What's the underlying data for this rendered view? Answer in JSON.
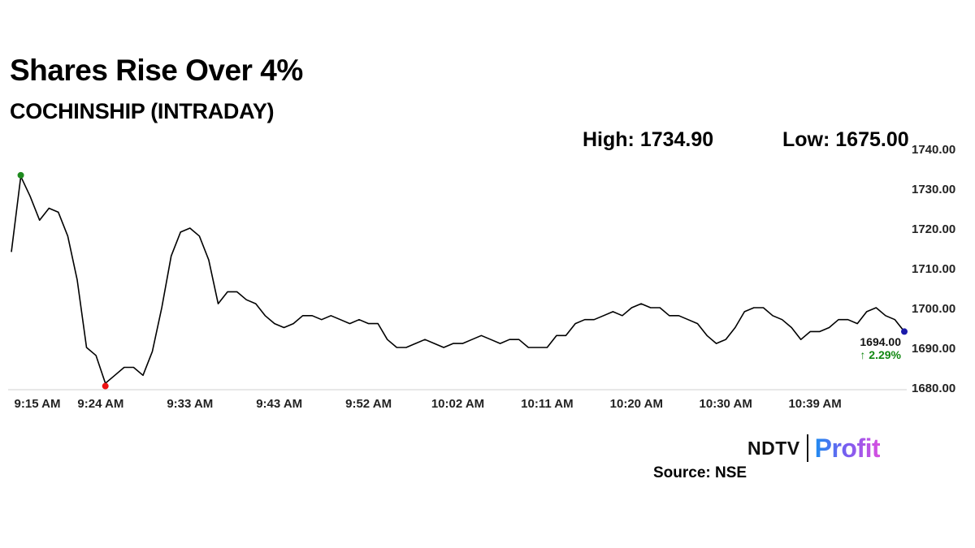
{
  "header": {
    "title": "Shares Rise Over 4%",
    "subtitle": "COCHINSHIP (INTRADAY)"
  },
  "stats": {
    "high": "High: 1734.90",
    "low": "Low: 1675.00"
  },
  "brand": {
    "ndtv": "NDTV",
    "profit": "Profit",
    "source": "Source: NSE"
  },
  "chart_data": {
    "type": "line",
    "title": "COCHINSHIP (INTRADAY)",
    "xlabel": "",
    "ylabel": "",
    "ylim": [
      1680,
      1740
    ],
    "y_ticks": [
      "1740.00",
      "1730.00",
      "1720.00",
      "1710.00",
      "1700.00",
      "1690.00",
      "1680.00"
    ],
    "x_ticks": [
      "9:15 AM",
      "9:24 AM",
      "9:33 AM",
      "9:43 AM",
      "9:52 AM",
      "10:02 AM",
      "10:11 AM",
      "10:20 AM",
      "10:30 AM",
      "10:39 AM"
    ],
    "grid": false,
    "x_minutes": [
      0,
      1,
      2,
      3,
      4,
      5,
      6,
      7,
      8,
      9,
      10,
      11,
      12,
      13,
      14,
      15,
      16,
      17,
      18,
      19,
      20,
      21,
      22,
      23,
      24,
      25,
      26,
      27,
      28,
      29,
      30,
      31,
      32,
      33,
      34,
      35,
      36,
      37,
      38,
      39,
      40,
      41,
      42,
      43,
      44,
      45,
      46,
      47,
      48,
      49,
      50,
      51,
      52,
      53,
      54,
      55,
      56,
      57,
      58,
      59,
      60,
      61,
      62,
      63,
      64,
      65,
      66,
      67,
      68,
      69,
      70,
      71,
      72,
      73,
      74,
      75,
      76,
      77,
      78,
      79,
      80,
      81,
      82,
      83,
      84,
      85,
      86,
      87,
      88,
      89,
      90,
      91,
      92,
      93,
      94,
      95
    ],
    "series": [
      {
        "values": [
          1714,
          1733,
          1728,
          1722,
          1725,
          1724,
          1718,
          1707,
          1690,
          1688,
          1681,
          1683,
          1685,
          1685,
          1683,
          1689,
          1700,
          1713,
          1719,
          1720,
          1718,
          1712,
          1701,
          1704,
          1704,
          1702,
          1701,
          1698,
          1696,
          1695,
          1696,
          1698,
          1698,
          1697,
          1698,
          1697,
          1696,
          1697,
          1696,
          1696,
          1692,
          1690,
          1690,
          1691,
          1692,
          1691,
          1690,
          1691,
          1691,
          1692,
          1693,
          1692,
          1691,
          1692,
          1692,
          1690,
          1690,
          1690,
          1693,
          1693,
          1696,
          1697,
          1697,
          1698,
          1699,
          1698,
          1700,
          1701,
          1700,
          1700,
          1698,
          1698,
          1697,
          1696,
          1693,
          1691,
          1692,
          1695,
          1699,
          1700,
          1700,
          1698,
          1697,
          1695,
          1692,
          1694,
          1694,
          1695,
          1697,
          1697,
          1696,
          1699,
          1700,
          1698,
          1697,
          1694
        ],
        "color": "#000000"
      }
    ],
    "markers": {
      "high": {
        "x": 1,
        "y": 1733.3,
        "color": "#1e8a1e"
      },
      "low": {
        "x": 10,
        "y": 1680.3,
        "color": "#ee1111"
      },
      "last": {
        "x": 95,
        "y": 1694,
        "color": "#1a1aaa"
      }
    },
    "last_label": "1694.00",
    "change_label": "↑ 2.29%",
    "change_color": "#118811"
  }
}
